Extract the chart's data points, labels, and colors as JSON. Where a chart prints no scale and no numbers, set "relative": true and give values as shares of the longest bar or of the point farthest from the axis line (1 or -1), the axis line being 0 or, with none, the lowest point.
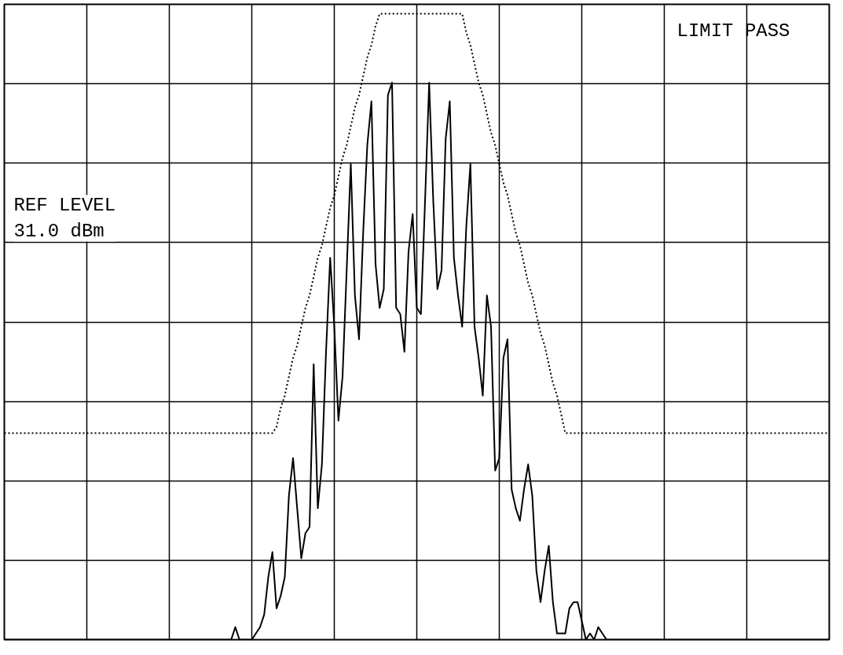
{
  "chart_data": {
    "type": "line",
    "relative": true,
    "grid": true,
    "annotations": [
      "LIMIT PASS",
      "REF LEVEL\n31.0 dBm"
    ],
    "categories": [
      null,
      null,
      null,
      null,
      null,
      null,
      null,
      null,
      null,
      null,
      null,
      null,
      null,
      null,
      null,
      null,
      null,
      null,
      null,
      null,
      null,
      null,
      null,
      null,
      null,
      null,
      null,
      null,
      null,
      null,
      null,
      null,
      null,
      null,
      null,
      null,
      null,
      null,
      null,
      null,
      null,
      null,
      null,
      null,
      null,
      null,
      null,
      null,
      null,
      null,
      null,
      null,
      null,
      null,
      null,
      null,
      null,
      null,
      null,
      null,
      null,
      null,
      null,
      null,
      null,
      null,
      null,
      null,
      null,
      null,
      null,
      null,
      null,
      null,
      null,
      null,
      null,
      null,
      null,
      null,
      null,
      null,
      null,
      null,
      null,
      null,
      null,
      null,
      null,
      null,
      null,
      null,
      null,
      null,
      null,
      null,
      null,
      null,
      null,
      null,
      null,
      null,
      null,
      null,
      null,
      null,
      null,
      null,
      null,
      null,
      null,
      null,
      null,
      null,
      null,
      null,
      null,
      null,
      null,
      null,
      null,
      null,
      null,
      null,
      null,
      null,
      null,
      null,
      null,
      null,
      null,
      null,
      null,
      null,
      null,
      null,
      null,
      null,
      null,
      null,
      null,
      null,
      null,
      null,
      null,
      null,
      null,
      null,
      null,
      null,
      null,
      null,
      null,
      null,
      null,
      null,
      null,
      null,
      null,
      null,
      null,
      null,
      null,
      null,
      null,
      null,
      null,
      null,
      null,
      null,
      null,
      null,
      null,
      null,
      null,
      null,
      null,
      null,
      null,
      null,
      null,
      null,
      null,
      null,
      null,
      null,
      null,
      null,
      null,
      null,
      null,
      null,
      null,
      null,
      null,
      null,
      null,
      null,
      null,
      null,
      null
    ],
    "series": [
      {
        "color": "#000000",
        "line_style": "solid",
        "values": [
          0,
          0,
          0,
          0,
          0,
          0,
          0,
          0,
          0,
          0,
          0,
          0,
          0,
          0,
          0,
          0,
          0,
          0,
          0,
          0,
          0,
          0,
          0,
          0,
          0,
          0,
          0,
          0,
          0,
          0,
          0,
          0,
          0,
          0,
          0,
          0,
          0,
          0,
          0,
          0,
          0,
          0,
          0,
          0,
          0,
          0,
          0,
          0,
          0,
          0,
          0,
          0,
          0,
          0,
          0,
          0,
          0.02,
          0,
          0,
          0,
          0,
          0.01,
          0.02,
          0.04,
          0.1,
          0.14,
          0.05,
          0.07,
          0.1,
          0.23,
          0.29,
          0.21,
          0.13,
          0.17,
          0.18,
          0.44,
          0.21,
          0.28,
          0.46,
          0.61,
          0.5,
          0.35,
          0.42,
          0.59,
          0.76,
          0.55,
          0.48,
          0.65,
          0.79,
          0.86,
          0.6,
          0.53,
          0.56,
          0.87,
          0.89,
          0.53,
          0.52,
          0.46,
          0.62,
          0.68,
          0.53,
          0.52,
          0.7,
          0.89,
          0.7,
          0.56,
          0.59,
          0.8,
          0.86,
          0.61,
          0.55,
          0.5,
          0.66,
          0.76,
          0.5,
          0.45,
          0.39,
          0.55,
          0.5,
          0.27,
          0.29,
          0.45,
          0.48,
          0.24,
          0.21,
          0.19,
          0.24,
          0.28,
          0.23,
          0.11,
          0.06,
          0.11,
          0.15,
          0.06,
          0.01,
          0.01,
          0.01,
          0.05,
          0.06,
          0.06,
          0.03,
          0,
          0.01,
          0,
          0.02,
          0.01,
          0,
          0,
          0,
          0,
          0,
          0,
          0,
          0,
          0,
          0,
          0,
          0,
          0,
          0,
          0,
          0,
          0,
          0,
          0,
          0,
          0,
          0,
          0,
          0,
          0,
          0,
          0,
          0,
          0,
          0,
          0,
          0,
          0,
          0,
          0,
          0,
          0,
          0,
          0,
          0,
          0,
          0,
          0,
          0,
          0,
          0,
          0,
          0,
          0,
          0,
          0,
          0,
          0,
          0,
          0
        ]
      },
      {
        "color": "#000000",
        "line_style": "dotted",
        "values": [
          0.33,
          0.33,
          0.33,
          0.33,
          0.33,
          0.33,
          0.33,
          0.33,
          0.33,
          0.33,
          0.33,
          0.33,
          0.33,
          0.33,
          0.33,
          0.33,
          0.33,
          0.33,
          0.33,
          0.33,
          0.33,
          0.33,
          0.33,
          0.33,
          0.33,
          0.33,
          0.33,
          0.33,
          0.33,
          0.33,
          0.33,
          0.33,
          0.33,
          0.33,
          0.33,
          0.33,
          0.33,
          0.33,
          0.33,
          0.33,
          0.33,
          0.33,
          0.33,
          0.33,
          0.33,
          0.33,
          0.33,
          0.33,
          0.33,
          0.33,
          0.33,
          0.33,
          0.33,
          0.33,
          0.33,
          0.33,
          0.33,
          0.33,
          0.33,
          0.33,
          0.33,
          0.33,
          0.33,
          0.33,
          0.33,
          0.33,
          0.34,
          0.37,
          0.39,
          0.42,
          0.45,
          0.47,
          0.5,
          0.53,
          0.55,
          0.58,
          0.61,
          0.63,
          0.66,
          0.69,
          0.71,
          0.74,
          0.77,
          0.79,
          0.82,
          0.85,
          0.87,
          0.9,
          0.93,
          0.95,
          0.98,
          1.0,
          1.0,
          1.0,
          1.0,
          1.0,
          1.0,
          1.0,
          1.0,
          1.0,
          1.0,
          1.0,
          1.0,
          1.0,
          1.0,
          1.0,
          1.0,
          1.0,
          1.0,
          1.0,
          1.0,
          1.0,
          0.97,
          0.95,
          0.92,
          0.89,
          0.87,
          0.84,
          0.81,
          0.79,
          0.76,
          0.73,
          0.71,
          0.68,
          0.65,
          0.63,
          0.6,
          0.57,
          0.55,
          0.52,
          0.49,
          0.47,
          0.44,
          0.41,
          0.39,
          0.36,
          0.33,
          0.33,
          0.33,
          0.33,
          0.33,
          0.33,
          0.33,
          0.33,
          0.33,
          0.33,
          0.33,
          0.33,
          0.33,
          0.33,
          0.33,
          0.33,
          0.33,
          0.33,
          0.33,
          0.33,
          0.33,
          0.33,
          0.33,
          0.33,
          0.33,
          0.33,
          0.33,
          0.33,
          0.33,
          0.33,
          0.33,
          0.33,
          0.33,
          0.33,
          0.33,
          0.33,
          0.33,
          0.33,
          0.33,
          0.33,
          0.33,
          0.33,
          0.33,
          0.33,
          0.33,
          0.33,
          0.33,
          0.33,
          0.33,
          0.33,
          0.33,
          0.33,
          0.33,
          0.33,
          0.33,
          0.33,
          0.33,
          0.33,
          0.33,
          0.33,
          0.33,
          0.33,
          0.33,
          0.33,
          0.33
        ]
      }
    ]
  }
}
